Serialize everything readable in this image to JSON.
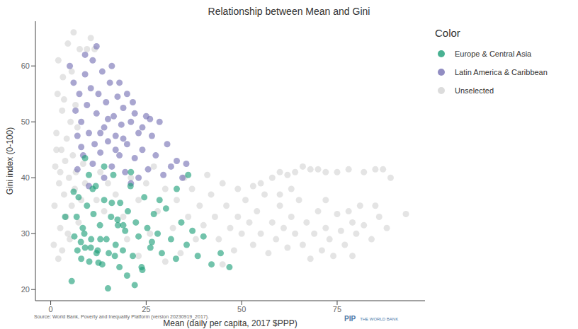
{
  "chart_data": {
    "type": "scatter",
    "title": "Relationship between Mean and Gini",
    "x_label": "Mean (daily per capita, 2017 $PPP)",
    "y_label": "Gini index (0-100)",
    "legend_title": "Color",
    "legend": "right",
    "source": "Source: World Bank, Poverty and Inequality Platform (version 20230919_2017).",
    "annotations": [
      "PIP",
      "THE WORLD BANK"
    ],
    "grid": false,
    "marker": "circle",
    "xlim": [
      -4,
      98
    ],
    "xticks": [
      0,
      25,
      50,
      75
    ],
    "ylim": [
      18,
      68
    ],
    "yticks": [
      20,
      30,
      40,
      50,
      60
    ],
    "series": [
      {
        "name": "Europe & Central Asia",
        "color": "#1b9e77",
        "values": [
          [
            5.5,
            21.5
          ],
          [
            6.2,
            29.5
          ],
          [
            6.8,
            33
          ],
          [
            7.3,
            36.5
          ],
          [
            7.9,
            28.5
          ],
          [
            8.4,
            31
          ],
          [
            9,
            27.5
          ],
          [
            9.5,
            35
          ],
          [
            10.1,
            25
          ],
          [
            10.6,
            29
          ],
          [
            11.2,
            33.5
          ],
          [
            11.8,
            38.5
          ],
          [
            12.3,
            27
          ],
          [
            12.9,
            31.5
          ],
          [
            13.5,
            24.5
          ],
          [
            14,
            36
          ],
          [
            14.6,
            29
          ],
          [
            15.2,
            26.5
          ],
          [
            15.8,
            33
          ],
          [
            16.4,
            40.5
          ],
          [
            17,
            28
          ],
          [
            17.6,
            31.5
          ],
          [
            18.2,
            35.5
          ],
          [
            18.9,
            27
          ],
          [
            19.5,
            30.5
          ],
          [
            20.2,
            34
          ],
          [
            20.9,
            38.5
          ],
          [
            21.5,
            26
          ],
          [
            22.3,
            32
          ],
          [
            23,
            29.5
          ],
          [
            23.8,
            24
          ],
          [
            24.5,
            36.5
          ],
          [
            25.3,
            31
          ],
          [
            26.1,
            27.5
          ],
          [
            27,
            33.5
          ],
          [
            28,
            30
          ],
          [
            29.1,
            26.5
          ],
          [
            30.2,
            34.5
          ],
          [
            31.5,
            29
          ],
          [
            32.8,
            25.5
          ],
          [
            34.2,
            32
          ],
          [
            35.6,
            28
          ],
          [
            37.1,
            30.5
          ],
          [
            38.5,
            26
          ],
          [
            40,
            29.5
          ],
          [
            42.1,
            24.5
          ],
          [
            44.5,
            26.5
          ],
          [
            46.8,
            24
          ],
          [
            6,
            37.5
          ],
          [
            8,
            25.5
          ],
          [
            10,
            40.5
          ],
          [
            12,
            26.5
          ],
          [
            14,
            42
          ],
          [
            16,
            35.5
          ],
          [
            18,
            24
          ],
          [
            20,
            22.5
          ],
          [
            11,
            38
          ],
          [
            13,
            29
          ],
          [
            15,
            20.2
          ],
          [
            9,
            43.5
          ],
          [
            17.5,
            32.5
          ],
          [
            22,
            20.8
          ],
          [
            24,
            23.5
          ],
          [
            26.5,
            28.5
          ],
          [
            19,
            31.5
          ],
          [
            7,
            27
          ],
          [
            21,
            41
          ],
          [
            3.8,
            33
          ],
          [
            10.5,
            27.5
          ],
          [
            12.5,
            24.8
          ],
          [
            8.8,
            30
          ],
          [
            16.8,
            26
          ],
          [
            28.5,
            36
          ],
          [
            33,
            38
          ],
          [
            36,
            40.5
          ]
        ]
      },
      {
        "name": "Latin America & Caribbean",
        "color": "#7570b3",
        "values": [
          [
            5,
            60
          ],
          [
            6,
            57
          ],
          [
            6.5,
            52
          ],
          [
            7,
            47.5
          ],
          [
            7.5,
            55
          ],
          [
            8,
            50
          ],
          [
            8.5,
            44
          ],
          [
            9,
            58.5
          ],
          [
            9.5,
            53
          ],
          [
            10,
            48
          ],
          [
            10.5,
            56
          ],
          [
            11,
            61
          ],
          [
            11.5,
            46
          ],
          [
            12,
            51.5
          ],
          [
            12.5,
            55
          ],
          [
            13,
            44.5
          ],
          [
            13.5,
            59
          ],
          [
            14,
            49
          ],
          [
            14.5,
            53.5
          ],
          [
            15,
            46.5
          ],
          [
            15.5,
            57
          ],
          [
            16,
            42
          ],
          [
            16.5,
            51
          ],
          [
            17,
            47.5
          ],
          [
            17.5,
            54.5
          ],
          [
            18,
            44
          ],
          [
            18.5,
            49.5
          ],
          [
            19,
            52.5
          ],
          [
            19.5,
            41
          ],
          [
            20,
            46
          ],
          [
            21,
            50
          ],
          [
            21.5,
            53.5
          ],
          [
            22,
            43.5
          ],
          [
            23,
            48
          ],
          [
            24,
            45
          ],
          [
            25,
            51
          ],
          [
            25.5,
            41.5
          ],
          [
            26.5,
            47.5
          ],
          [
            27.5,
            44
          ],
          [
            28.5,
            50
          ],
          [
            29.5,
            40.5
          ],
          [
            30.5,
            46
          ],
          [
            31.5,
            42
          ],
          [
            33,
            43
          ],
          [
            34.5,
            40
          ],
          [
            35.5,
            42.5
          ],
          [
            12,
            63.5
          ],
          [
            9,
            62
          ],
          [
            14,
            40
          ],
          [
            10,
            38.5
          ],
          [
            11,
            42.5
          ],
          [
            16,
            60
          ],
          [
            18,
            57
          ],
          [
            20,
            55
          ],
          [
            13,
            48
          ],
          [
            15,
            50.5
          ],
          [
            17,
            45
          ],
          [
            19,
            47
          ],
          [
            22,
            51.5
          ],
          [
            24,
            49
          ],
          [
            8,
            45.5
          ],
          [
            7,
            41.5
          ],
          [
            26,
            50.5
          ],
          [
            23,
            40
          ],
          [
            21,
            39
          ]
        ]
      },
      {
        "name": "Unselected",
        "color": "#d3d3d3",
        "values": [
          [
            0.8,
            28
          ],
          [
            1,
            35
          ],
          [
            1.2,
            42
          ],
          [
            1.5,
            48
          ],
          [
            1.8,
            55
          ],
          [
            2,
            61
          ],
          [
            2.2,
            39
          ],
          [
            2.5,
            31
          ],
          [
            2.8,
            45
          ],
          [
            3,
            52
          ],
          [
            3.2,
            58
          ],
          [
            3.5,
            37
          ],
          [
            3.8,
            43
          ],
          [
            4,
            33
          ],
          [
            4.2,
            47
          ],
          [
            4.5,
            64
          ],
          [
            4.8,
            40
          ],
          [
            5,
            29
          ],
          [
            5.2,
            50
          ],
          [
            5.5,
            35
          ],
          [
            5.8,
            44
          ],
          [
            6,
            66
          ],
          [
            6.3,
            38
          ],
          [
            6.6,
            41
          ],
          [
            7,
            49
          ],
          [
            7.3,
            32
          ],
          [
            7.6,
            63
          ],
          [
            8,
            36
          ],
          [
            8.5,
            42.5
          ],
          [
            9,
            39
          ],
          [
            9.5,
            63
          ],
          [
            10.5,
            65
          ],
          [
            11.5,
            63
          ],
          [
            2,
            25.5
          ],
          [
            3,
            27
          ],
          [
            4.5,
            30
          ],
          [
            1.5,
            45
          ],
          [
            2.5,
            41
          ],
          [
            3.5,
            54
          ],
          [
            5.5,
            59
          ],
          [
            6.5,
            53
          ],
          [
            12,
            36
          ],
          [
            13,
            41
          ],
          [
            14,
            34
          ],
          [
            15,
            39
          ],
          [
            17,
            37
          ],
          [
            19,
            33
          ],
          [
            21,
            40
          ],
          [
            23,
            36
          ],
          [
            25,
            39
          ],
          [
            27,
            42
          ],
          [
            28,
            34
          ],
          [
            30,
            38
          ],
          [
            32,
            31
          ],
          [
            33,
            36
          ],
          [
            35,
            40
          ],
          [
            36,
            33
          ],
          [
            38,
            29
          ],
          [
            39,
            35
          ],
          [
            40,
            31.5
          ],
          [
            42,
            37
          ],
          [
            43,
            33
          ],
          [
            44,
            29
          ],
          [
            45,
            39
          ],
          [
            46,
            35
          ],
          [
            47,
            31
          ],
          [
            48,
            27
          ],
          [
            49,
            33
          ],
          [
            50,
            30
          ],
          [
            51,
            36
          ],
          [
            52,
            32
          ],
          [
            53,
            28
          ],
          [
            54,
            34
          ],
          [
            55,
            30
          ],
          [
            56,
            37
          ],
          [
            57,
            26.5
          ],
          [
            58,
            32
          ],
          [
            59,
            29
          ],
          [
            60,
            35
          ],
          [
            61,
            31
          ],
          [
            62,
            27.5
          ],
          [
            63,
            33
          ],
          [
            64,
            30
          ],
          [
            65,
            36
          ],
          [
            66,
            28
          ],
          [
            67,
            32
          ],
          [
            68,
            25.5
          ],
          [
            69,
            30
          ],
          [
            70,
            34
          ],
          [
            71,
            27
          ],
          [
            72,
            31
          ],
          [
            73,
            29
          ],
          [
            74,
            26
          ],
          [
            75,
            33.5
          ],
          [
            76,
            30.5
          ],
          [
            77,
            28
          ],
          [
            78,
            34
          ],
          [
            79,
            32
          ],
          [
            80,
            30
          ],
          [
            81,
            35
          ],
          [
            82,
            31.5
          ],
          [
            84,
            29
          ],
          [
            86,
            33
          ],
          [
            88,
            31
          ],
          [
            93,
            33.5
          ],
          [
            55,
            39
          ],
          [
            58,
            40
          ],
          [
            60,
            41
          ],
          [
            62,
            40.5
          ],
          [
            64,
            41
          ],
          [
            66,
            42
          ],
          [
            68,
            41.5
          ],
          [
            70,
            41.5
          ],
          [
            72,
            41
          ],
          [
            75,
            41
          ],
          [
            78,
            41.5
          ],
          [
            82,
            41
          ],
          [
            85,
            41.5
          ],
          [
            87,
            41.5
          ],
          [
            89,
            40
          ],
          [
            41,
            40.5
          ],
          [
            37,
            38
          ],
          [
            30,
            25
          ],
          [
            34,
            26.5
          ],
          [
            45,
            24.5
          ],
          [
            49,
            38
          ],
          [
            53,
            38.5
          ],
          [
            26,
            30
          ],
          [
            20,
            29
          ],
          [
            23,
            26
          ],
          [
            60,
            37
          ],
          [
            63,
            38
          ],
          [
            79,
            26
          ],
          [
            85,
            35
          ],
          [
            72,
            36
          ]
        ]
      }
    ]
  }
}
